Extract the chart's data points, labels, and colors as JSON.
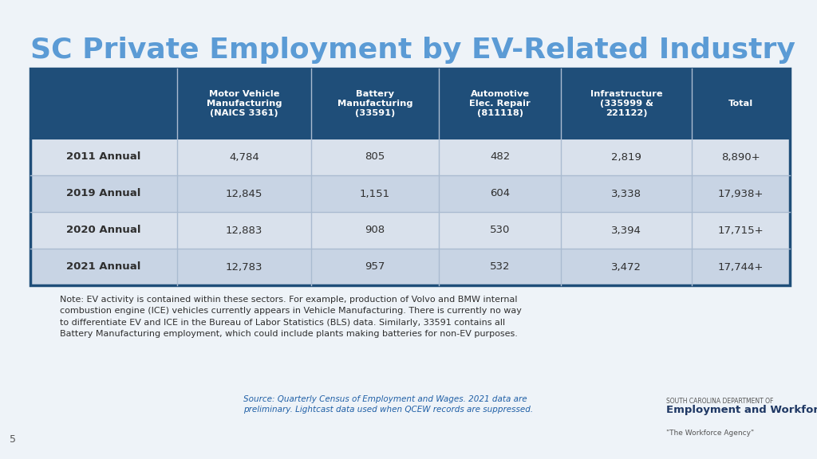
{
  "title": "SC Private Employment by EV-Related Industry",
  "title_color": "#5B9BD5",
  "background_color": "#EEF3F8",
  "table_bg_color": "#FFFFFF",
  "header_bg_color": "#1F4E79",
  "header_text_color": "#FFFFFF",
  "row_colors": [
    "#D9E1EC",
    "#C8D4E4"
  ],
  "cell_text_color": "#2F2F2F",
  "label_text_color": "#2F2F2F",
  "table_border_color": "#1F4E79",
  "divider_color": "#AABBD0",
  "columns": [
    "Motor Vehicle\nManufacturing\n(NAICS 3361)",
    "Battery\nManufacturing\n(33591)",
    "Automotive\nElec. Repair\n(811118)",
    "Infrastructure\n(335999 &\n221122)",
    "Total"
  ],
  "rows": [
    {
      "label": "2011 Annual",
      "values": [
        "4,784",
        "805",
        "482",
        "2,819",
        "8,890+"
      ]
    },
    {
      "label": "2019 Annual",
      "values": [
        "12,845",
        "1,151",
        "604",
        "3,338",
        "17,938+"
      ]
    },
    {
      "label": "2020 Annual",
      "values": [
        "12,883",
        "908",
        "530",
        "3,394",
        "17,715+"
      ]
    },
    {
      "label": "2021 Annual",
      "values": [
        "12,783",
        "957",
        "532",
        "3,472",
        "17,744+"
      ]
    }
  ],
  "note_text": "Note: EV activity is contained within these sectors. For example, production of Volvo and BMW internal\ncombustion engine (ICE) vehicles currently appears in Vehicle Manufacturing. There is currently no way\nto differentiate EV and ICE in the Bureau of Labor Statistics (BLS) data. Similarly, 33591 contains all\nBattery Manufacturing employment, which could include plants making batteries for non-EV purposes.",
  "source_text": "Source: Quarterly Census of Employment and Wages. 2021 data are\npreliminary. Lightcast data used when QCEW records are suppressed.",
  "page_number": "5"
}
